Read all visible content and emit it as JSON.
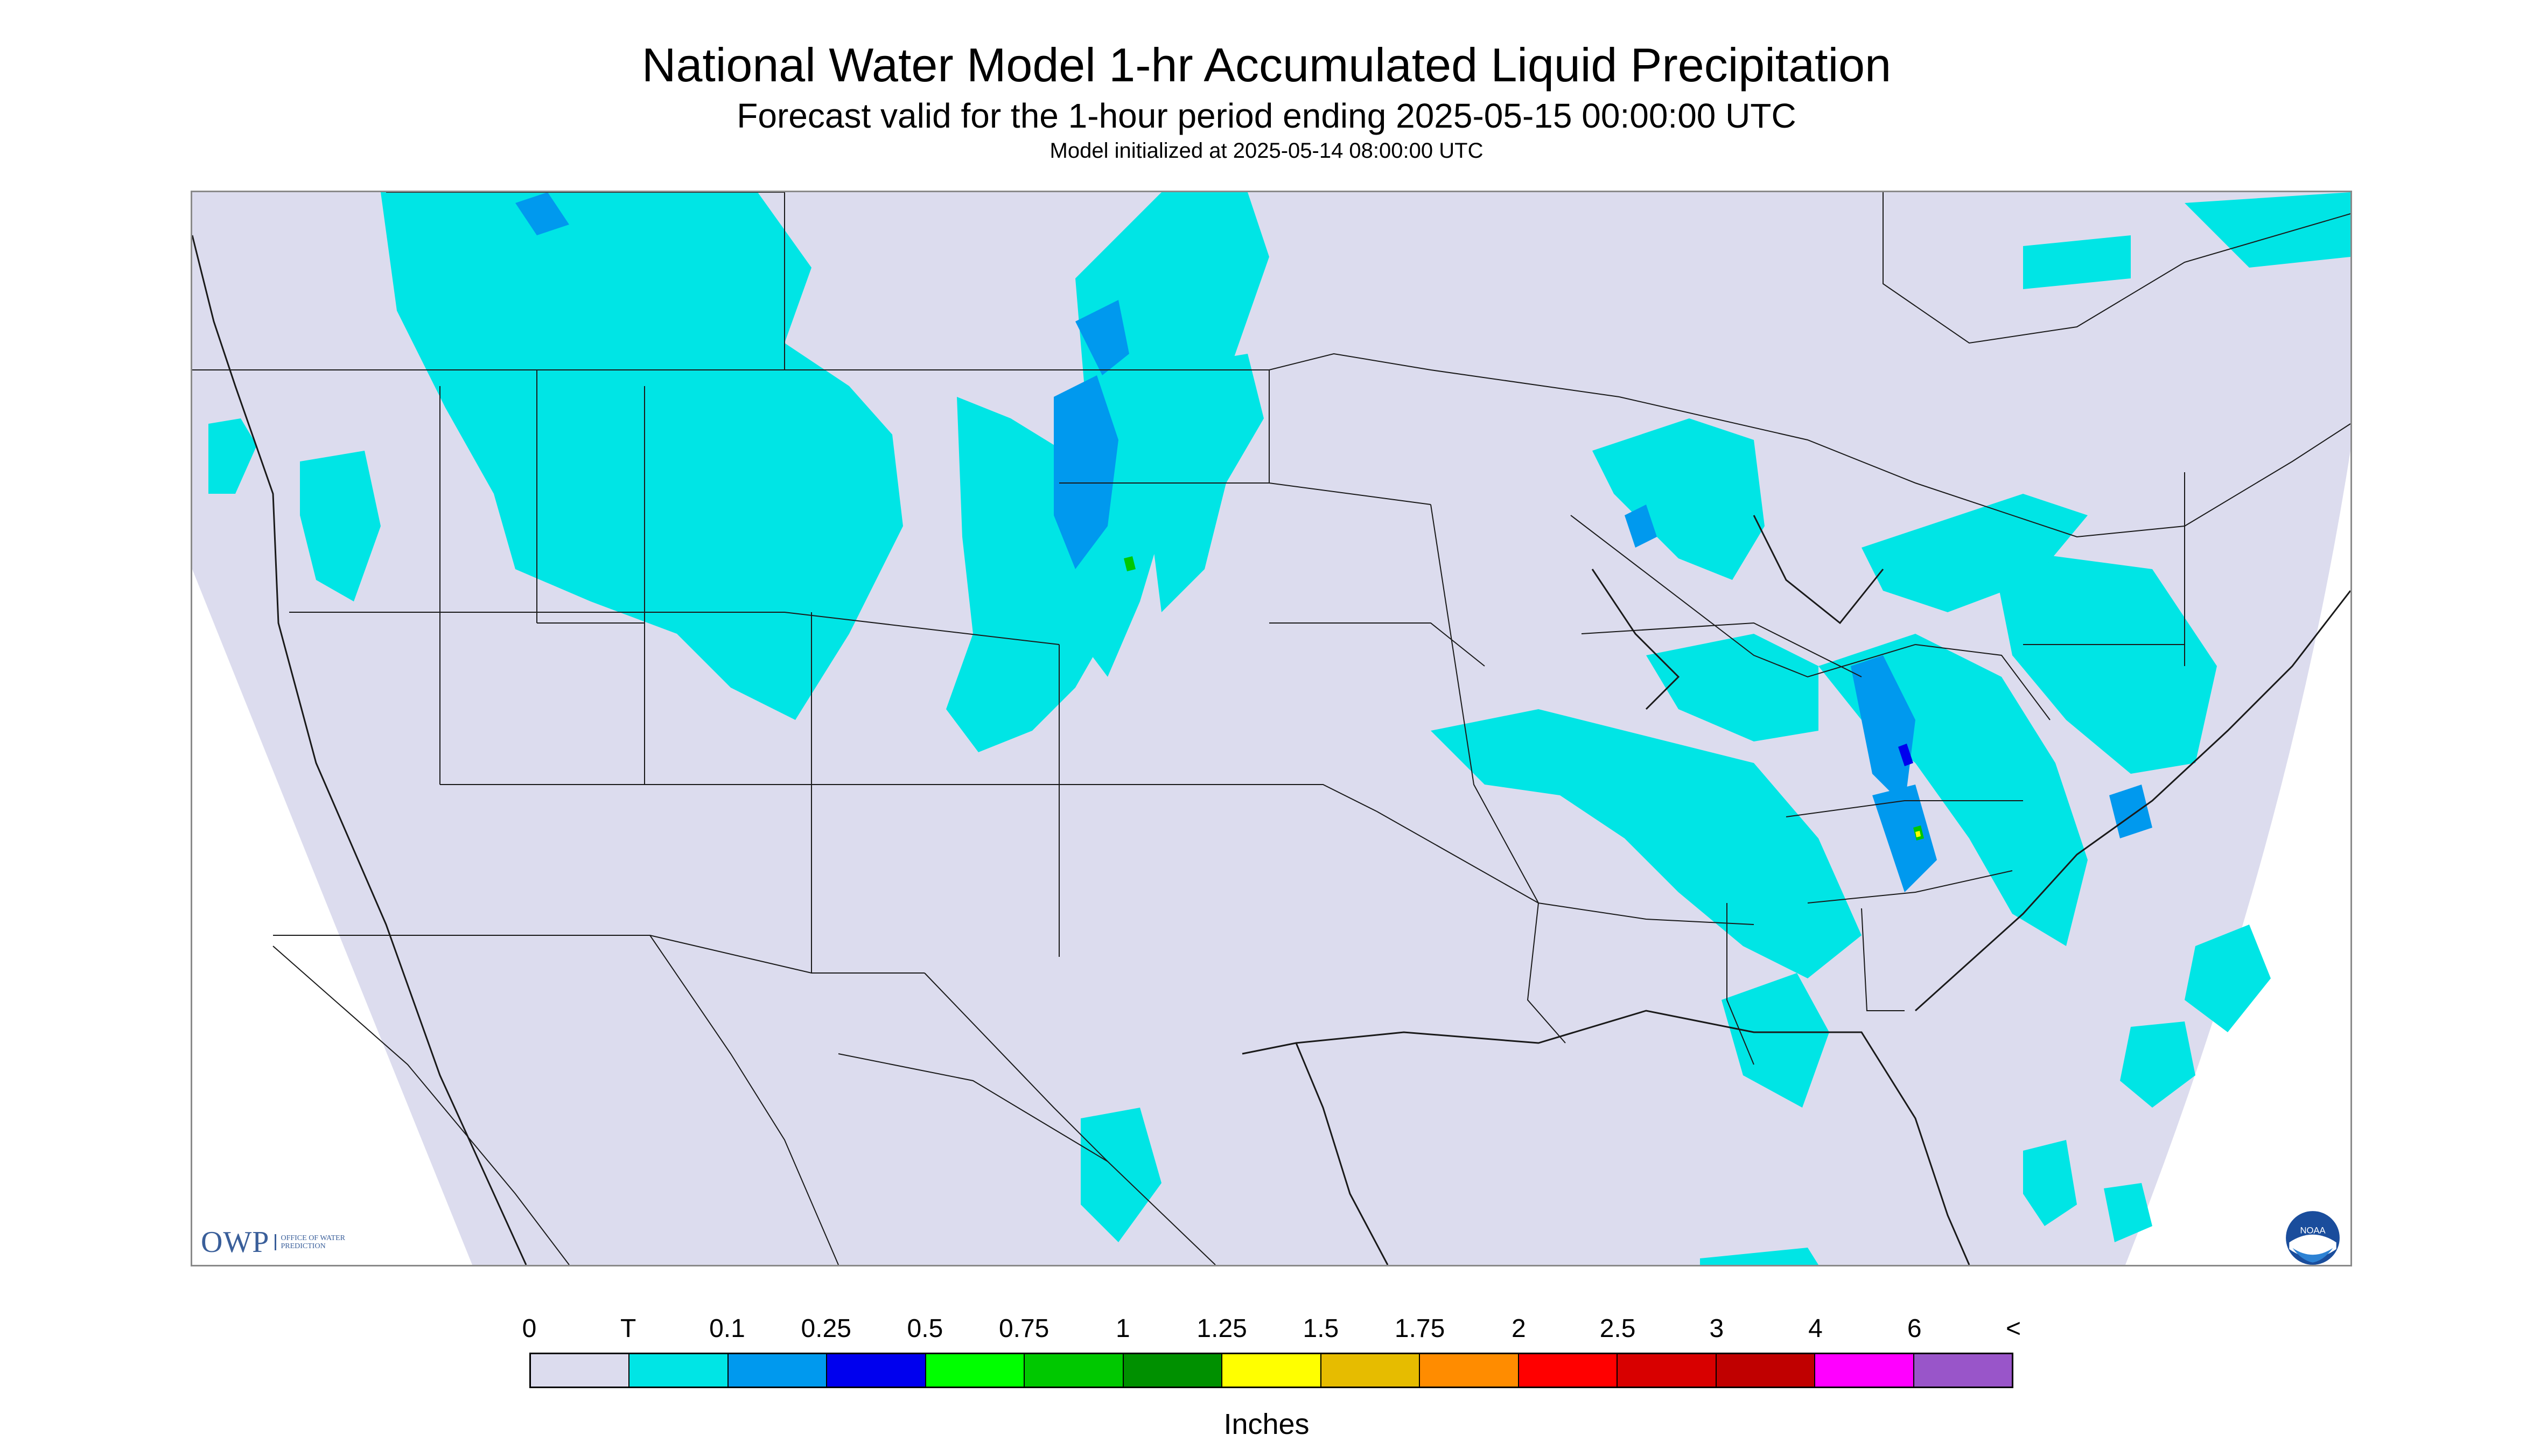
{
  "title": "National Water Model 1-hr Accumulated Liquid Precipitation",
  "subtitle": "Forecast valid for the 1-hour period ending 2025-05-15 00:00:00 UTC",
  "init_line": "Model initialized at 2025-05-14 08:00:00 UTC",
  "logos": {
    "owp_text": "OWP",
    "owp_subtext": "OFFICE OF WATER PREDICTION",
    "noaa_text": "NOAA"
  },
  "legend": {
    "labels": [
      "0",
      "T",
      "0.1",
      "0.25",
      "0.5",
      "0.75",
      "1",
      "1.25",
      "1.5",
      "1.75",
      "2",
      "2.5",
      "3",
      "4",
      "6",
      "<"
    ],
    "colors": [
      "#dcdcee",
      "#00e5e5",
      "#0099ee",
      "#0000ee",
      "#00ff00",
      "#00c800",
      "#009000",
      "#ffff00",
      "#e6bc00",
      "#ff8c00",
      "#ff0000",
      "#d80000",
      "#c00000",
      "#ff00ff",
      "#9955c9"
    ],
    "units": "Inches"
  },
  "map_colors": {
    "background": "#dcdcee",
    "outside": "#ffffff",
    "borders": "#1a1a1a"
  }
}
